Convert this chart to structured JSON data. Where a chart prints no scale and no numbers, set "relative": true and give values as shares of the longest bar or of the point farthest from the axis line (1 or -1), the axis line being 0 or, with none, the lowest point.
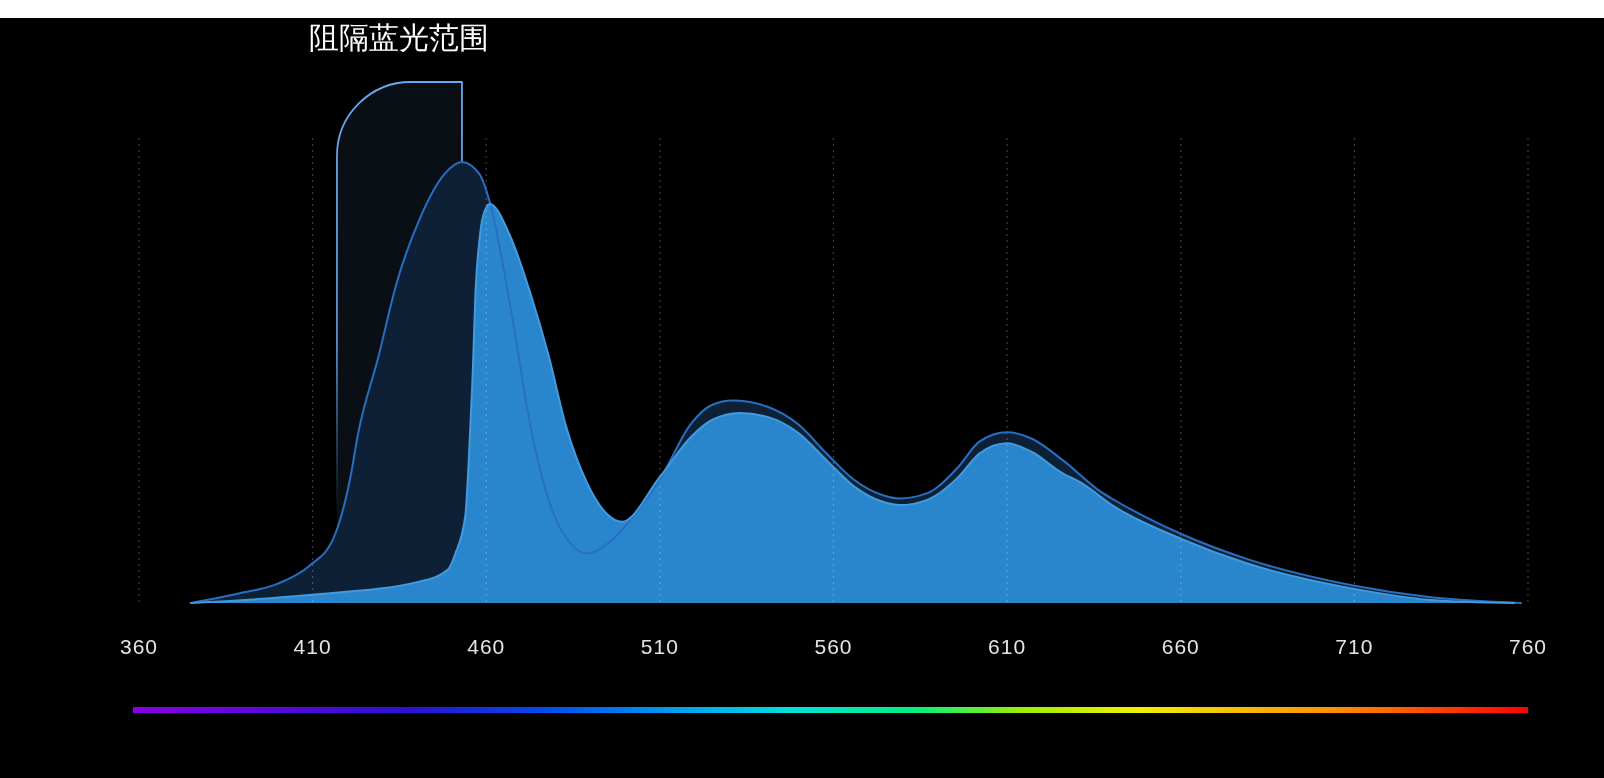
{
  "chart_data": {
    "type": "area",
    "relative": true,
    "xlim": [
      360,
      760
    ],
    "xticks": [
      360,
      410,
      460,
      510,
      560,
      610,
      660,
      710,
      760
    ],
    "grid": "x",
    "bands": [
      {
        "axis": "x",
        "from": 417,
        "to": 453,
        "label": "阻隔蓝光范围",
        "color": "#6aa8f0"
      }
    ],
    "series": [
      {
        "color": "#0d2036",
        "x": [
          375,
          389,
          400,
          409,
          416,
          421,
          423,
          429,
          434,
          441,
          448,
          453,
          458,
          461,
          467,
          473,
          479,
          485,
          489,
          495,
          503,
          510,
          519,
          525,
          531,
          541,
          550,
          558,
          566,
          574,
          579,
          587,
          596,
          602,
          610,
          617,
          626,
          637,
          641,
          660,
          679,
          710,
          732,
          758
        ],
        "values": [
          0,
          0.022,
          0.044,
          0.084,
          0.147,
          0.29,
          0.38,
          0.56,
          0.72,
          0.874,
          0.973,
          1,
          0.973,
          0.91,
          0.67,
          0.39,
          0.21,
          0.129,
          0.112,
          0.135,
          0.203,
          0.28,
          0.407,
          0.449,
          0.459,
          0.445,
          0.404,
          0.339,
          0.279,
          0.245,
          0.237,
          0.249,
          0.309,
          0.366,
          0.387,
          0.373,
          0.324,
          0.252,
          0.233,
          0.157,
          0.1,
          0.039,
          0.013,
          0
        ]
      },
      {
        "color": "#2a86cc",
        "x": [
          375,
          409,
          441,
          449,
          451,
          454,
          455,
          456,
          457,
          458,
          459,
          461,
          467,
          473,
          478,
          483,
          489,
          495,
          499,
          510,
          519,
          525,
          533,
          541,
          550,
          558,
          566,
          574,
          579,
          587,
          596,
          602,
          610,
          617,
          626,
          631,
          641,
          660,
          679,
          710,
          732,
          756
        ],
        "values": [
          0,
          0.018,
          0.049,
          0.076,
          0.11,
          0.2,
          0.33,
          0.5,
          0.72,
          0.82,
          0.875,
          0.905,
          0.83,
          0.695,
          0.56,
          0.4,
          0.273,
          0.2,
          0.184,
          0.286,
          0.377,
          0.415,
          0.431,
          0.422,
          0.385,
          0.324,
          0.264,
          0.23,
          0.222,
          0.234,
          0.286,
          0.339,
          0.362,
          0.343,
          0.294,
          0.274,
          0.218,
          0.146,
          0.09,
          0.032,
          0.007,
          0
        ]
      }
    ]
  }
}
